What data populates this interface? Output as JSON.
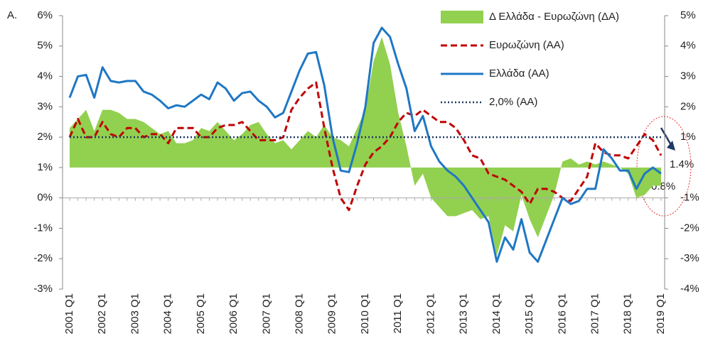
{
  "chart_data": {
    "type": "line",
    "panel_label": "A.",
    "categories": [
      "2001 Q1",
      null,
      null,
      null,
      "2002 Q1",
      null,
      null,
      null,
      "2003 Q1",
      null,
      null,
      null,
      "2004 Q1",
      null,
      null,
      null,
      "2005 Q1",
      null,
      null,
      null,
      "2006 Q1",
      null,
      null,
      null,
      "2007 Q1",
      null,
      null,
      null,
      "2008 Q1",
      null,
      null,
      null,
      "2009 Q1",
      null,
      null,
      null,
      "2010 Q1",
      null,
      null,
      null,
      "2011 Q1",
      null,
      null,
      null,
      "2012 Q1",
      null,
      null,
      null,
      "2013 Q1",
      null,
      null,
      null,
      "2014 Q1",
      null,
      null,
      null,
      "2015 Q1",
      null,
      null,
      null,
      "2016 Q1",
      null,
      null,
      null,
      "2017 Q1",
      null,
      null,
      null,
      "2018 Q1",
      null,
      null,
      null,
      "2019 Q1"
    ],
    "ylim": [
      -3,
      6
    ],
    "yticks": [
      {
        "value": -3,
        "label": "-3%"
      },
      {
        "value": -2,
        "label": "-2%"
      },
      {
        "value": -1,
        "label": "-1%"
      },
      {
        "value": 0,
        "label": "0%"
      },
      {
        "value": 1,
        "label": "1%"
      },
      {
        "value": 2,
        "label": "2%"
      },
      {
        "value": 3,
        "label": "3%"
      },
      {
        "value": 4,
        "label": "4%"
      },
      {
        "value": 5,
        "label": "5%"
      },
      {
        "value": 6,
        "label": "6%"
      }
    ],
    "y2lim": [
      -4,
      5
    ],
    "y2ticks": [
      {
        "value": -4,
        "label": "-4%"
      },
      {
        "value": -3,
        "label": "-3%"
      },
      {
        "value": -2,
        "label": "-2%"
      },
      {
        "value": -1,
        "label": "-1%"
      },
      {
        "value": 1,
        "label": "1%"
      },
      {
        "value": 2,
        "label": "2%"
      },
      {
        "value": 3,
        "label": "3%"
      },
      {
        "value": 4,
        "label": "4%"
      },
      {
        "value": 5,
        "label": "5%"
      }
    ],
    "series": [
      {
        "name": "Δ Ελλάδα - Ευρωζώνη (ΔΑ)",
        "kind": "area",
        "axis": "y2",
        "color": "#92d050",
        "values": [
          1.3,
          1.6,
          1.9,
          1.2,
          1.9,
          1.9,
          1.8,
          1.6,
          1.6,
          1.5,
          1.3,
          1.1,
          1.2,
          0.8,
          0.8,
          0.9,
          1.3,
          1.2,
          1.5,
          1.2,
          0.9,
          1.1,
          1.4,
          1.5,
          1.1,
          0.8,
          0.9,
          0.6,
          0.9,
          1.2,
          1.0,
          1.4,
          1.0,
          0.9,
          0.7,
          1.3,
          1.9,
          3.5,
          4.3,
          3.4,
          1.8,
          0.7,
          -0.6,
          -0.2,
          -1.0,
          -1.3,
          -1.6,
          -1.6,
          -1.5,
          -1.4,
          -1.7,
          -1.6,
          -2.9,
          -1.9,
          -2.1,
          -0.9,
          -1.7,
          -2.3,
          -1.6,
          -0.9,
          0.2,
          0.3,
          0.1,
          0.2,
          0.1,
          0.2,
          0.1,
          0.0,
          -0.2,
          -1.0,
          -0.9,
          -0.6,
          -0.6
        ]
      },
      {
        "name": "Ευρωζώνη (ΑΑ)",
        "kind": "dashed",
        "color": "#c00000",
        "values": [
          2.0,
          2.6,
          2.0,
          2.0,
          2.5,
          2.1,
          2.0,
          2.3,
          2.3,
          2.0,
          2.1,
          2.1,
          1.8,
          2.3,
          2.3,
          2.3,
          2.0,
          2.0,
          2.3,
          2.4,
          2.4,
          2.5,
          2.2,
          1.9,
          1.9,
          1.9,
          2.0,
          2.9,
          3.3,
          3.6,
          3.8,
          2.3,
          1.0,
          0.0,
          -0.4,
          0.4,
          1.1,
          1.5,
          1.7,
          2.0,
          2.5,
          2.8,
          2.7,
          2.9,
          2.7,
          2.5,
          2.5,
          2.3,
          1.9,
          1.4,
          1.3,
          0.8,
          0.7,
          0.6,
          0.4,
          0.2,
          -0.2,
          0.3,
          0.3,
          0.2,
          0.0,
          -0.1,
          0.3,
          0.7,
          1.8,
          1.5,
          1.4,
          1.4,
          1.3,
          1.7,
          2.1,
          1.9,
          1.4
        ]
      },
      {
        "name": "Ελλάδα (ΑΑ)",
        "kind": "solid",
        "color": "#1f77c4",
        "values": [
          3.3,
          4.0,
          4.05,
          3.3,
          4.3,
          3.85,
          3.8,
          3.85,
          3.85,
          3.5,
          3.4,
          3.2,
          2.95,
          3.05,
          3.0,
          3.2,
          3.4,
          3.25,
          3.8,
          3.6,
          3.2,
          3.45,
          3.5,
          3.2,
          3.0,
          2.65,
          2.8,
          3.5,
          4.2,
          4.75,
          4.8,
          3.7,
          2.0,
          0.9,
          0.85,
          1.8,
          3.0,
          5.1,
          5.6,
          5.3,
          4.4,
          3.6,
          2.2,
          2.7,
          1.7,
          1.2,
          0.9,
          0.7,
          0.4,
          0.0,
          -0.4,
          -0.8,
          -2.1,
          -1.3,
          -1.7,
          -0.7,
          -1.8,
          -2.1,
          -1.4,
          -0.7,
          0.0,
          -0.2,
          -0.1,
          0.3,
          0.3,
          1.6,
          1.3,
          0.9,
          0.9,
          0.3,
          0.8,
          1.0,
          0.8
        ]
      }
    ],
    "reference_line": {
      "name": "2,0% (ΑΑ)",
      "value": 2,
      "color": "#1f3864"
    },
    "annotations": [
      {
        "text": "1.4%"
      },
      {
        "text": "0.8%"
      }
    ]
  }
}
